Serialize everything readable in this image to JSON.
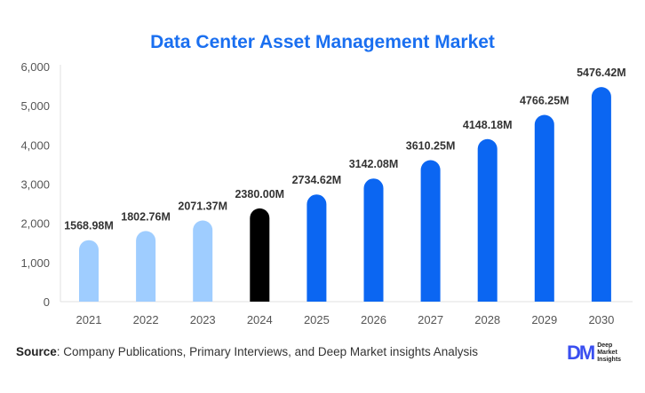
{
  "chart_data": {
    "type": "bar",
    "title": "Data Center Asset Management Market",
    "categories": [
      "2021",
      "2022",
      "2023",
      "2024",
      "2025",
      "2026",
      "2027",
      "2028",
      "2029",
      "2030"
    ],
    "values": [
      1568.98,
      1802.76,
      2071.37,
      2380.0,
      2734.62,
      3142.08,
      3610.25,
      4148.18,
      4766.25,
      5476.42
    ],
    "data_labels": [
      "1568.98M",
      "1802.76M",
      "2071.37M",
      "2380.00M",
      "2734.62M",
      "3142.08M",
      "3610.25M",
      "4148.18M",
      "4766.25M",
      "5476.42M"
    ],
    "ylim": [
      0,
      6000
    ],
    "yticks": [
      "0",
      "1,000",
      "2,000",
      "3,000",
      "4,000",
      "5,000",
      "6,000"
    ],
    "grid": false,
    "colors": {
      "historical": "#9fcdff",
      "base_year": "#000000",
      "forecast": "#0b66f2"
    },
    "bar_colors": [
      "historical",
      "historical",
      "historical",
      "base_year",
      "forecast",
      "forecast",
      "forecast",
      "forecast",
      "forecast",
      "forecast"
    ]
  },
  "footer": {
    "source_label": "Source",
    "source_text": ": Company Publications, Primary Interviews, and Deep Market insights Analysis",
    "logo_mark": "DM",
    "logo_lines": [
      "Deep",
      "Market",
      "Insights"
    ]
  }
}
